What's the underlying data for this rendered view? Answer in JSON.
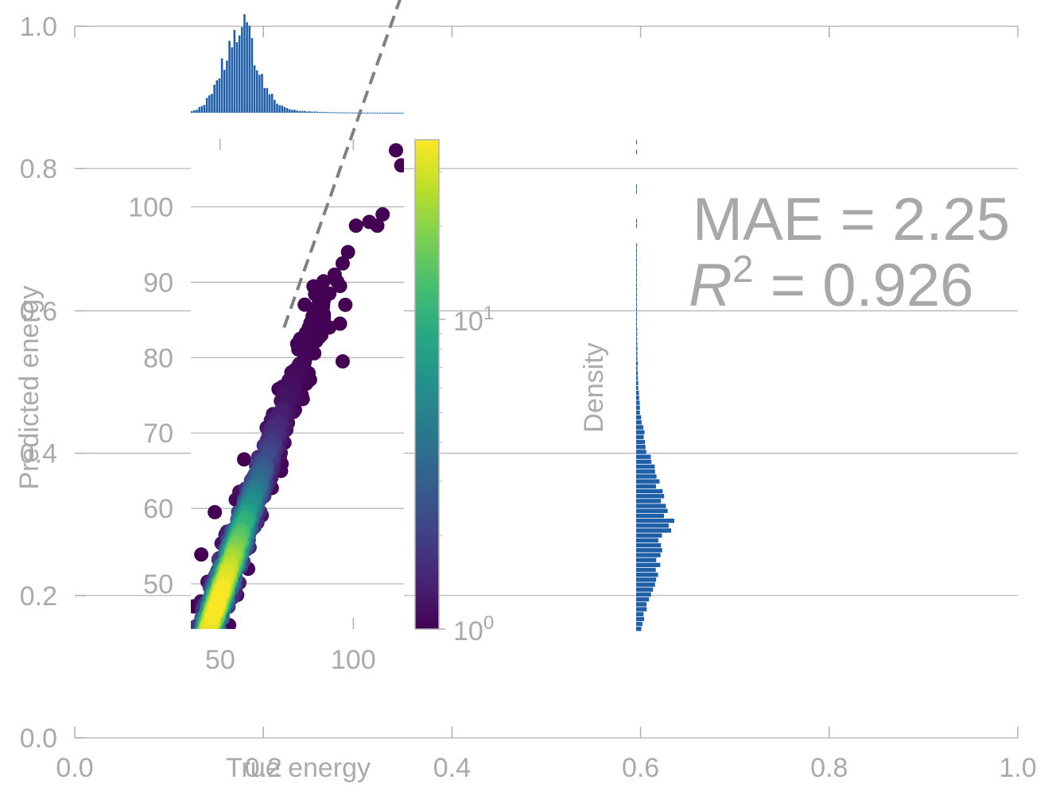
{
  "chart_data": [
    {
      "type": "line",
      "role": "background-axes",
      "x_ticks": [
        "0.0",
        "0.2",
        "0.4",
        "0.6",
        "0.8",
        "1.0"
      ],
      "y_ticks": [
        "0.0",
        "0.2",
        "0.4",
        "0.6",
        "0.8",
        "1.0"
      ],
      "xlim": [
        0,
        1
      ],
      "ylim": [
        0,
        1
      ],
      "grid": true
    },
    {
      "type": "scatter",
      "role": "main-parity-plot",
      "xlabel": "True energy",
      "ylabel": "Predicted energy",
      "x_ticks": [
        50,
        100
      ],
      "y_ticks": [
        50,
        60,
        70,
        80,
        90,
        100
      ],
      "x_tick_labels": [
        "50",
        "100"
      ],
      "y_tick_labels": [
        "50",
        "60",
        "70",
        "80",
        "90",
        "100"
      ],
      "xlim": [
        39,
        119
      ],
      "ylim": [
        44,
        109
      ],
      "parity_line": [
        [
          74,
          84
        ],
        [
          118,
          128
        ]
      ],
      "color_mapping": "log point density (viridis)",
      "outlier_points": [
        {
          "x": 116,
          "y": 107.5
        },
        {
          "x": 118,
          "y": 105.5
        },
        {
          "x": 111,
          "y": 99.0
        },
        {
          "x": 106,
          "y": 98.0
        },
        {
          "x": 101,
          "y": 97.5
        },
        {
          "x": 109,
          "y": 97.5
        },
        {
          "x": 98,
          "y": 94.0
        },
        {
          "x": 96,
          "y": 92.5
        },
        {
          "x": 93,
          "y": 91.0
        },
        {
          "x": 95,
          "y": 89.5
        },
        {
          "x": 91,
          "y": 88.5
        },
        {
          "x": 97,
          "y": 87.0
        },
        {
          "x": 91,
          "y": 84.0
        },
        {
          "x": 95,
          "y": 84.5
        },
        {
          "x": 88,
          "y": 83.0
        },
        {
          "x": 96,
          "y": 79.5
        },
        {
          "x": 82,
          "y": 82.0
        },
        {
          "x": 79,
          "y": 75.0
        },
        {
          "x": 81,
          "y": 74.5
        },
        {
          "x": 71,
          "y": 69.5
        },
        {
          "x": 59,
          "y": 66.5
        },
        {
          "x": 52,
          "y": 56.5
        },
        {
          "x": 48,
          "y": 59.5
        },
        {
          "x": 43,
          "y": 45.5
        },
        {
          "x": 40,
          "y": 47.0
        }
      ]
    },
    {
      "type": "bar",
      "role": "colorbar",
      "scale": "log",
      "range": [
        1,
        38
      ],
      "tick_labels": [
        "10^0",
        "10^1"
      ],
      "colormap": "viridis"
    },
    {
      "type": "bar",
      "role": "top-marginal-histogrammed-true-energy",
      "bin_range": [
        39,
        119
      ],
      "color": "#1f5fa8"
    },
    {
      "type": "bar",
      "role": "right-marginal-histogram-predicted-energy",
      "ylabel": "Density",
      "bin_range": [
        44,
        109
      ],
      "color": "#1f5fa8"
    }
  ],
  "stats": {
    "mae_text": "MAE = 2.25",
    "r2_prefix": "R",
    "r2_sup": "2",
    "r2_value": " = 0.926"
  },
  "colors": {
    "histogram": "#1f5fa8",
    "parity_line": "#808080",
    "axis_text": "#aaaaaa",
    "grid": "#b0b0b0"
  }
}
